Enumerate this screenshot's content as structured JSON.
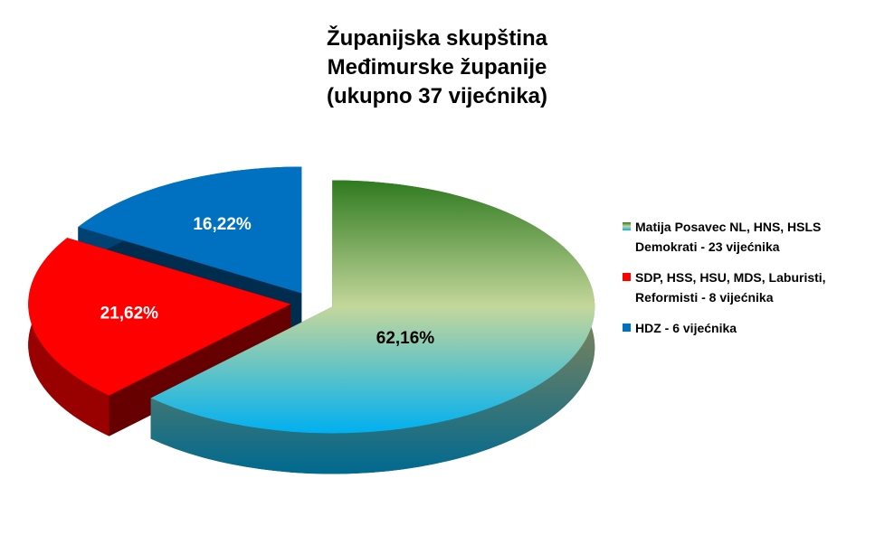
{
  "chart_data": {
    "type": "pie",
    "title": [
      "Županijska skupština",
      "Međimurske županije",
      "(ukupno 37 vijećnika)"
    ],
    "categories": [
      "Matija Posavec NL, HNS, HSLS Demokrati - 23 vijećnika",
      "SDP, HSS, HSU, MDS, Laburisti, Reformisti - 8 vijećnika",
      "HDZ - 6 vijećnika"
    ],
    "values": [
      62.16,
      21.62,
      16.22
    ],
    "value_labels": [
      "62,16%",
      "21,62%",
      "16,22%"
    ],
    "colors": [
      [
        "#2f7a1f",
        "#c4d79b",
        "#00b0f0"
      ],
      "#ff0000",
      "#0070c0"
    ],
    "legend": "right"
  }
}
